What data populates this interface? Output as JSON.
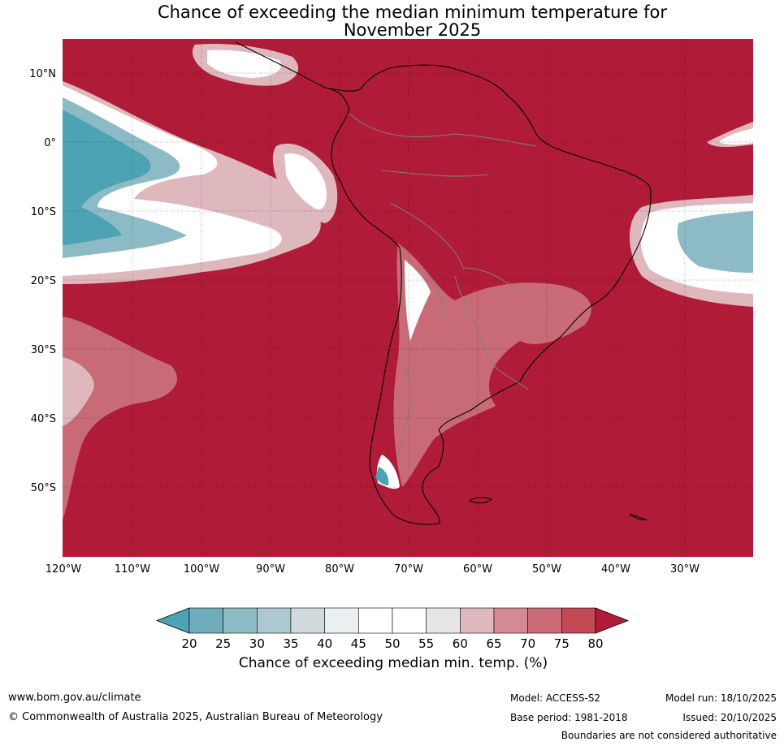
{
  "title": {
    "line1": "Chance of exceeding the median minimum temperature for",
    "line2": "November 2025"
  },
  "axes": {
    "lat_labels": [
      "10°N",
      "0°",
      "10°S",
      "20°S",
      "30°S",
      "40°S",
      "50°S"
    ],
    "lon_labels": [
      "120°W",
      "110°W",
      "100°W",
      "90°W",
      "80°W",
      "70°W",
      "60°W",
      "50°W",
      "40°W",
      "30°W"
    ]
  },
  "colorbar": {
    "ticks": [
      "20",
      "25",
      "30",
      "35",
      "40",
      "45",
      "50",
      "55",
      "60",
      "65",
      "70",
      "75",
      "80"
    ],
    "label": "Chance of exceeding median min. temp. (%)",
    "colors": [
      "#4ba3b4",
      "#6fadbb",
      "#8cbbc6",
      "#aec8d0",
      "#d1dadd",
      "#eaf0f2",
      "#ffffff",
      "#ffffff",
      "#e6e6e8",
      "#dfb8be",
      "#d38a95",
      "#c96b77",
      "#c24856",
      "#b01c37"
    ]
  },
  "colors": {
    "high": "#b01c37",
    "mid_high": "#c96b77",
    "light": "#dfb8be",
    "near_white": "#e6e6e8",
    "low": "#4ba3b4",
    "low_mid": "#8cbbc6"
  },
  "footer": {
    "website": "www.bom.gov.au/climate",
    "copyright": "© Commonwealth of Australia 2025, Australian Bureau of Meteorology",
    "model": "Model: ACCESS-S2",
    "base_period": "Base period: 1981-2018",
    "model_run": "Model run: 18/10/2025",
    "issued": "Issued: 20/10/2025",
    "disclaimer": "Boundaries are not considered authoritative"
  }
}
